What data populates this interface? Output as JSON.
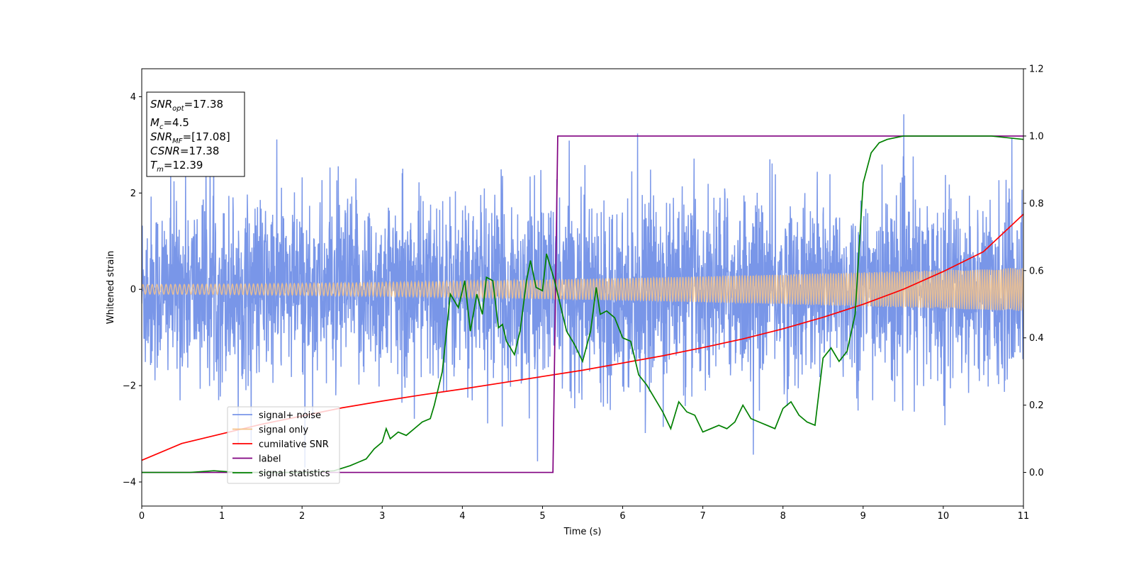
{
  "chart_data": {
    "type": "line",
    "xlabel": "Time (s)",
    "ylabel": "Whitened strain",
    "xlim": [
      0,
      11
    ],
    "ylim_left": [
      -4.5,
      4.58
    ],
    "ylim_right": [
      -0.1,
      1.2
    ],
    "x_ticks": [
      0,
      1,
      2,
      3,
      4,
      5,
      6,
      7,
      8,
      9,
      10,
      11
    ],
    "y_ticks_left": [
      -4,
      -2,
      0,
      2,
      4
    ],
    "y_ticks_right": [
      0.0,
      0.2,
      0.4,
      0.6,
      0.8,
      1.0,
      1.2
    ],
    "y_tick_labels_left": [
      "−4",
      "−2",
      "0",
      "2",
      "4"
    ],
    "y_tick_labels_right": [
      "0.0",
      "0.2",
      "0.4",
      "0.6",
      "0.8",
      "1.0",
      "1.2"
    ],
    "legend_position": "lower-left",
    "grid": false,
    "info_box": {
      "snr_opt": {
        "main": "SNR",
        "sub": "opt",
        "value": "=17.38"
      },
      "mc": {
        "main": "M",
        "sub": "c",
        "value": "=4.5"
      },
      "snr_mf": {
        "main": "SNR",
        "sub": "MF",
        "value": "=[17.08]"
      },
      "csnr": {
        "main": "CSNR",
        "value": "=17.38"
      },
      "tm": {
        "main": "T",
        "sub": "m",
        "value": "=12.39"
      }
    },
    "series": [
      {
        "name": "signal+ noise",
        "color": "#7996e8",
        "axis": "left",
        "description_type": "noise",
        "std": 0.95,
        "spikes_max": 4.15,
        "spikes_min": -3.7
      },
      {
        "name": "signal only",
        "color": "#f5c38a",
        "axis": "left",
        "amplitude_start": 0.1,
        "amplitude_end": 0.45
      },
      {
        "name": "cumilative SNR",
        "color": "#ff0000",
        "axis": "left",
        "x": [
          0,
          0.5,
          1,
          1.5,
          2,
          2.5,
          3,
          3.5,
          4,
          4.5,
          5,
          5.5,
          6,
          6.5,
          7,
          7.5,
          8,
          8.5,
          9,
          9.5,
          10,
          10.5,
          11
        ],
        "y": [
          -3.55,
          -3.2,
          -3.0,
          -2.8,
          -2.63,
          -2.46,
          -2.32,
          -2.19,
          -2.07,
          -1.94,
          -1.81,
          -1.68,
          -1.53,
          -1.38,
          -1.21,
          -1.03,
          -0.82,
          -0.58,
          -0.31,
          -0.0,
          0.37,
          0.78,
          1.56
        ]
      },
      {
        "name": "label",
        "color": "#800080",
        "axis": "right",
        "x": [
          0,
          5.13,
          5.19,
          11
        ],
        "y": [
          0.0,
          0.0,
          1.0,
          1.0
        ]
      },
      {
        "name": "signal statistics",
        "color": "#008000",
        "axis": "right",
        "x": [
          0,
          0.3,
          0.6,
          0.9,
          1.2,
          1.5,
          1.8,
          2.1,
          2.4,
          2.6,
          2.8,
          2.9,
          3.0,
          3.05,
          3.1,
          3.2,
          3.3,
          3.4,
          3.5,
          3.6,
          3.65,
          3.75,
          3.85,
          3.95,
          4.03,
          4.1,
          4.18,
          4.25,
          4.3,
          4.38,
          4.45,
          4.5,
          4.55,
          4.65,
          4.72,
          4.8,
          4.85,
          4.92,
          5.0,
          5.05,
          5.1,
          5.15,
          5.2,
          5.3,
          5.4,
          5.5,
          5.6,
          5.67,
          5.72,
          5.8,
          5.9,
          6.0,
          6.1,
          6.2,
          6.3,
          6.5,
          6.6,
          6.7,
          6.8,
          6.9,
          7.0,
          7.1,
          7.2,
          7.3,
          7.4,
          7.5,
          7.6,
          7.7,
          7.8,
          7.9,
          8.0,
          8.1,
          8.2,
          8.3,
          8.4,
          8.5,
          8.6,
          8.7,
          8.8,
          8.9,
          9.0,
          9.1,
          9.2,
          9.3,
          9.5,
          9.8,
          10.2,
          10.6,
          11.0
        ],
        "y": [
          0.0,
          0.0,
          0.0,
          0.005,
          0.0,
          0.0,
          0.0,
          0.0,
          0.005,
          0.02,
          0.04,
          0.07,
          0.09,
          0.13,
          0.1,
          0.12,
          0.11,
          0.13,
          0.15,
          0.16,
          0.2,
          0.3,
          0.53,
          0.49,
          0.57,
          0.42,
          0.53,
          0.47,
          0.58,
          0.57,
          0.43,
          0.44,
          0.39,
          0.35,
          0.42,
          0.57,
          0.63,
          0.55,
          0.54,
          0.65,
          0.61,
          0.57,
          0.52,
          0.42,
          0.38,
          0.33,
          0.42,
          0.55,
          0.47,
          0.48,
          0.46,
          0.4,
          0.39,
          0.29,
          0.26,
          0.18,
          0.13,
          0.21,
          0.18,
          0.17,
          0.12,
          0.13,
          0.14,
          0.13,
          0.15,
          0.2,
          0.16,
          0.15,
          0.14,
          0.13,
          0.19,
          0.21,
          0.17,
          0.15,
          0.14,
          0.34,
          0.37,
          0.33,
          0.36,
          0.47,
          0.86,
          0.95,
          0.98,
          0.99,
          1.0,
          1.0,
          1.0,
          1.0,
          0.99
        ]
      }
    ]
  }
}
